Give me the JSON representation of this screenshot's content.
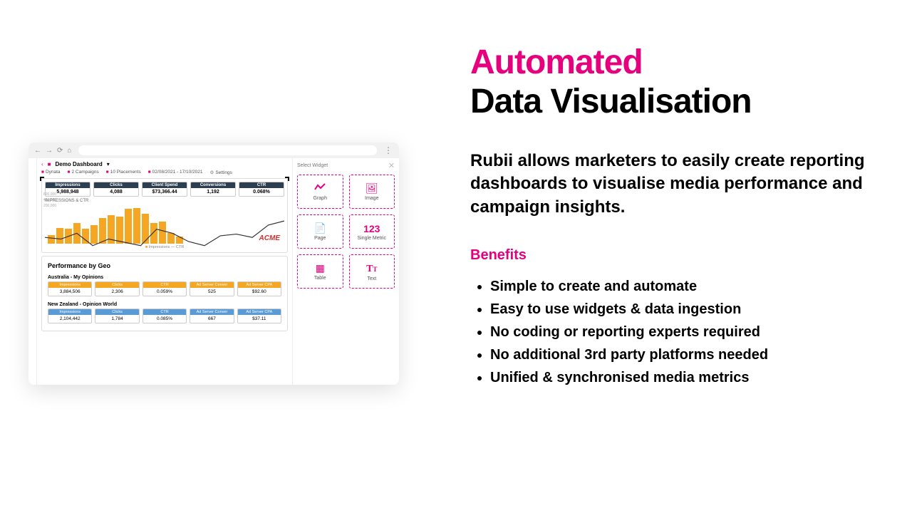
{
  "theme": {
    "accent": "#e6007e",
    "bar_color": "#f5a623",
    "navy": "#2c3e50",
    "orange_h": "#f5a623",
    "blue_h": "#5b9bd5"
  },
  "headline": {
    "line1": "Automated",
    "line2": "Data Visualisation"
  },
  "description": "Rubii allows marketers to easily create reporting dashboards to visualise media performance and campaign insights.",
  "benefits_heading": "Benefits",
  "benefits": [
    "Simple to create and automate",
    "Easy to use widgets & data ingestion",
    "No coding or reporting experts required",
    "No additional 3rd party platforms needed",
    "Unified & synchronised media metrics"
  ],
  "app": {
    "title": "Demo Dashboard",
    "crumbs": {
      "dynata": "Dynata",
      "campaigns": "2 Campaigns",
      "placements": "10 Placements",
      "daterange": "02/08/2021 - 17/10/2021",
      "settings": "Settings"
    },
    "metrics": [
      {
        "label": "Impressions",
        "value": "5,988,948"
      },
      {
        "label": "Clicks",
        "value": "4,088"
      },
      {
        "label": "Client Spend",
        "value": "$73,366.44"
      },
      {
        "label": "Conversions",
        "value": "1,192"
      },
      {
        "label": "CTR",
        "value": "0.068%"
      }
    ],
    "metric_header_bg": "#2c3e50",
    "chart": {
      "title": "IMPRESSIONS & CTR",
      "ylabels": [
        "600,000",
        "400,000",
        "200,000"
      ],
      "bars": [
        18,
        32,
        30,
        42,
        30,
        38,
        52,
        58,
        55,
        70,
        72,
        60,
        42,
        45,
        22,
        14
      ],
      "line": [
        40,
        38,
        45,
        30,
        38,
        34,
        30,
        50,
        45,
        35,
        30,
        42,
        44,
        40,
        55,
        60
      ],
      "brand": "ACME",
      "legend": "Impressions — CTR"
    },
    "geo": {
      "heading": "Performance by Geo",
      "tables": [
        {
          "title": "Australia - My Opinions",
          "header_bg": "#f5a623",
          "cols": [
            "Impressions",
            "Clicks",
            "CTR",
            "Ad Server Conver",
            "Ad Server CPA"
          ],
          "vals": [
            "3,884,506",
            "2,306",
            "0.059%",
            "525",
            "$92.60"
          ]
        },
        {
          "title": "New Zealand - Opinion World",
          "header_bg": "#5b9bd5",
          "cols": [
            "Impressions",
            "Clicks",
            "CTR",
            "Ad Server Conver",
            "Ad Server CPA"
          ],
          "vals": [
            "2,104,442",
            "1,784",
            "0.085%",
            "667",
            "$37.11"
          ]
        }
      ]
    },
    "widget_panel": {
      "heading": "Select Widget",
      "widgets": [
        {
          "name": "Graph",
          "icon": "chart"
        },
        {
          "name": "Image",
          "icon": "image"
        },
        {
          "name": "Page",
          "icon": "page"
        },
        {
          "name": "Single Metric",
          "icon": "123"
        },
        {
          "name": "Table",
          "icon": "table"
        },
        {
          "name": "Text",
          "icon": "text"
        }
      ]
    }
  }
}
